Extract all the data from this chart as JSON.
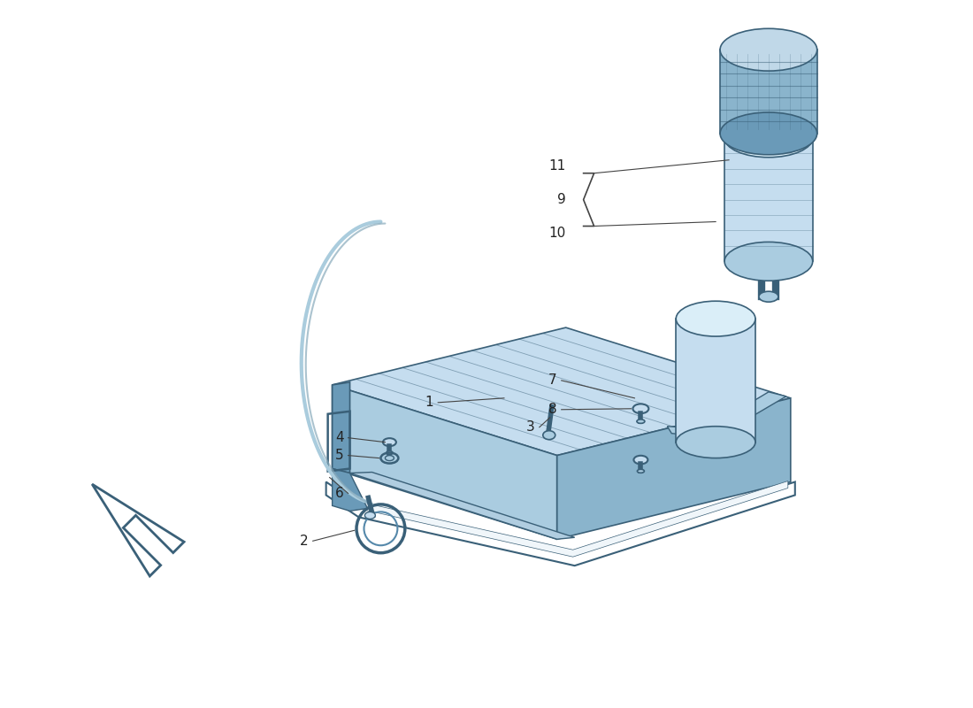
{
  "bg_color": "#ffffff",
  "fill_light": "#c5ddef",
  "fill_mid": "#aacce0",
  "fill_dark": "#8ab4cc",
  "fill_darker": "#6a9ab8",
  "edge_color": "#3a6078",
  "label_color": "#222222",
  "line_color": "#5588aa",
  "figure_size": [
    11.0,
    8.0
  ],
  "dpi": 100
}
